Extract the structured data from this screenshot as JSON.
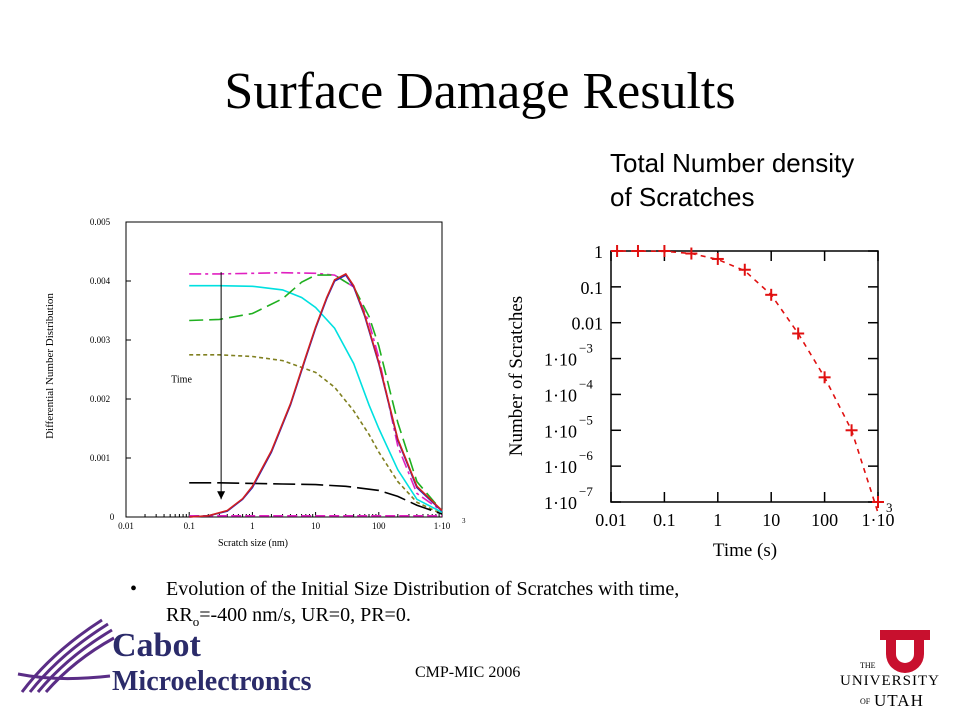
{
  "slide": {
    "title": "Surface Damage Results",
    "subtitle_line1": "Total Number density",
    "subtitle_line2": "of Scratches",
    "bullet_glyph": "•",
    "bullet_part1": "Evolution of the Initial Size Distribution of Scratches with time,",
    "bullet_part2_pre": "RR",
    "bullet_part2_sub": "o",
    "bullet_part2_post": "=-400 nm/s, UR=0, PR=0.",
    "footer": "CMP-MIC 2006",
    "logo_left_line1": "Cabot",
    "logo_left_line2": "Microelectronics",
    "logo_right_line1": "THE",
    "logo_right_line2": "UNIVERSITY",
    "logo_right_line3": "OF",
    "logo_right_line4": "UTAH"
  },
  "chart_data": [
    {
      "type": "line",
      "xlabel": "Scratch size (nm)",
      "ylabel": "Differential Number Distribution",
      "x_scale": "log",
      "xlim": [
        0.01,
        1000
      ],
      "ylim": [
        0,
        0.005
      ],
      "x_tick_labels": [
        "0.01",
        "0.1",
        "1",
        "10",
        "100",
        "1·10"
      ],
      "x_tick_exponent": "3",
      "y_tick_labels": [
        "0",
        "0.001",
        "0.002",
        "0.003",
        "0.004",
        "0.005"
      ],
      "annotation": "Time",
      "series": [
        {
          "color": "#e020c0",
          "dash": "12 4 3 4",
          "points": [
            [
              0.1,
              0.00412
            ],
            [
              0.3,
              0.00412
            ],
            [
              1,
              0.00413
            ],
            [
              3,
              0.00414
            ],
            [
              10,
              0.00413
            ],
            [
              20,
              0.0041
            ],
            [
              40,
              0.0039
            ],
            [
              70,
              0.0033
            ],
            [
              100,
              0.0027
            ],
            [
              200,
              0.0012
            ],
            [
              400,
              0.0004
            ],
            [
              1000,
              0.0001
            ]
          ]
        },
        {
          "color": "#00e0e0",
          "dash": "",
          "points": [
            [
              0.1,
              0.00392
            ],
            [
              0.3,
              0.00392
            ],
            [
              1,
              0.00391
            ],
            [
              3,
              0.00385
            ],
            [
              6,
              0.00372
            ],
            [
              10,
              0.00355
            ],
            [
              20,
              0.0032
            ],
            [
              40,
              0.0026
            ],
            [
              70,
              0.0019
            ],
            [
              100,
              0.0015
            ],
            [
              200,
              0.0008
            ],
            [
              400,
              0.0003
            ],
            [
              1000,
              8e-05
            ]
          ]
        },
        {
          "color": "#20b020",
          "dash": "14 6",
          "points": [
            [
              0.1,
              0.00333
            ],
            [
              0.3,
              0.00335
            ],
            [
              1,
              0.00345
            ],
            [
              3,
              0.0037
            ],
            [
              6,
              0.00398
            ],
            [
              10,
              0.0041
            ],
            [
              20,
              0.0041
            ],
            [
              40,
              0.0039
            ],
            [
              70,
              0.0034
            ],
            [
              100,
              0.0029
            ],
            [
              200,
              0.0016
            ],
            [
              400,
              0.0006
            ],
            [
              1000,
              0.0001
            ]
          ]
        },
        {
          "color": "#808020",
          "dash": "4 3",
          "points": [
            [
              0.1,
              0.00275
            ],
            [
              0.3,
              0.00275
            ],
            [
              1,
              0.00272
            ],
            [
              3,
              0.00265
            ],
            [
              10,
              0.00245
            ],
            [
              20,
              0.0022
            ],
            [
              40,
              0.0018
            ],
            [
              70,
              0.0014
            ],
            [
              100,
              0.0011
            ],
            [
              200,
              0.0006
            ],
            [
              400,
              0.00025
            ],
            [
              1000,
              5e-05
            ]
          ]
        },
        {
          "color": "#000000",
          "dash": "22 6",
          "points": [
            [
              0.1,
              0.00058
            ],
            [
              0.3,
              0.00058
            ],
            [
              1,
              0.00057
            ],
            [
              3,
              0.00056
            ],
            [
              10,
              0.00055
            ],
            [
              30,
              0.00052
            ],
            [
              100,
              0.00045
            ],
            [
              200,
              0.00035
            ],
            [
              400,
              0.0002
            ],
            [
              1000,
              5e-05
            ]
          ]
        },
        {
          "color": "#e020c0",
          "dash": "10 4",
          "points": [
            [
              0.1,
              2e-05
            ],
            [
              1,
              2e-05
            ],
            [
              10,
              2e-05
            ],
            [
              100,
              2e-05
            ],
            [
              1000,
              2e-05
            ]
          ]
        },
        {
          "color": "#2020c0",
          "dash": "",
          "points": [
            [
              0.1,
              0
            ],
            [
              0.2,
              2e-05
            ],
            [
              0.4,
              0.0001
            ],
            [
              0.7,
              0.0003
            ],
            [
              1,
              0.0005
            ],
            [
              2,
              0.0011
            ],
            [
              4,
              0.0019
            ],
            [
              7,
              0.0027
            ],
            [
              10,
              0.0032
            ],
            [
              15,
              0.0037
            ],
            [
              20,
              0.004
            ],
            [
              30,
              0.0041
            ],
            [
              40,
              0.0039
            ],
            [
              60,
              0.0034
            ],
            [
              100,
              0.0026
            ],
            [
              200,
              0.0013
            ],
            [
              400,
              0.0005
            ],
            [
              1000,
              0.0001
            ]
          ]
        },
        {
          "color": "#d02020",
          "dash": "",
          "points": [
            [
              0.1,
              0
            ],
            [
              0.2,
              2e-05
            ],
            [
              0.4,
              0.00011
            ],
            [
              0.7,
              0.00031
            ],
            [
              1,
              0.00052
            ],
            [
              2,
              0.00112
            ],
            [
              4,
              0.00192
            ],
            [
              7,
              0.00272
            ],
            [
              10,
              0.00322
            ],
            [
              15,
              0.00372
            ],
            [
              20,
              0.00402
            ],
            [
              30,
              0.00412
            ],
            [
              40,
              0.00392
            ],
            [
              60,
              0.00342
            ],
            [
              100,
              0.00262
            ],
            [
              200,
              0.00132
            ],
            [
              400,
              0.00052
            ],
            [
              1000,
              0.00011
            ]
          ]
        }
      ]
    },
    {
      "type": "scatter",
      "xlabel": "Time (s)",
      "ylabel": "Number of Scratches",
      "x_scale": "log",
      "y_scale": "log",
      "xlim": [
        0.01,
        1000
      ],
      "ylim": [
        1e-07,
        1
      ],
      "x_tick_labels": [
        "0.01",
        "0.1",
        "1",
        "10",
        "100",
        "1·10"
      ],
      "x_tick_exponent": "3",
      "y_tick_labels": [
        "1",
        "0.1",
        "0.01",
        "1·10",
        "1·10",
        "1·10",
        "1·10",
        "1·10"
      ],
      "y_tick_exponents": [
        "",
        "",
        "",
        "−3",
        "−4",
        "−5",
        "−6",
        "−7"
      ],
      "series": [
        {
          "color": "#e01010",
          "marker": "+",
          "points": [
            [
              0.013,
              1
            ],
            [
              0.032,
              1
            ],
            [
              0.1,
              1
            ],
            [
              0.32,
              0.85
            ],
            [
              1,
              0.6
            ],
            [
              3.2,
              0.3
            ],
            [
              10,
              0.06
            ],
            [
              32,
              0.005
            ],
            [
              100,
              0.0003
            ],
            [
              320,
              1e-05
            ],
            [
              1000,
              5e-08
            ]
          ]
        },
        {
          "color": "#e01010",
          "line_dash": "5 5",
          "points": [
            [
              0.01,
              1
            ],
            [
              0.1,
              0.98
            ],
            [
              0.32,
              0.85
            ],
            [
              1,
              0.58
            ],
            [
              3.2,
              0.28
            ],
            [
              10,
              0.06
            ],
            [
              32,
              0.005
            ],
            [
              100,
              0.0003
            ],
            [
              320,
              1e-05
            ],
            [
              1000,
              5e-08
            ]
          ]
        }
      ]
    }
  ]
}
